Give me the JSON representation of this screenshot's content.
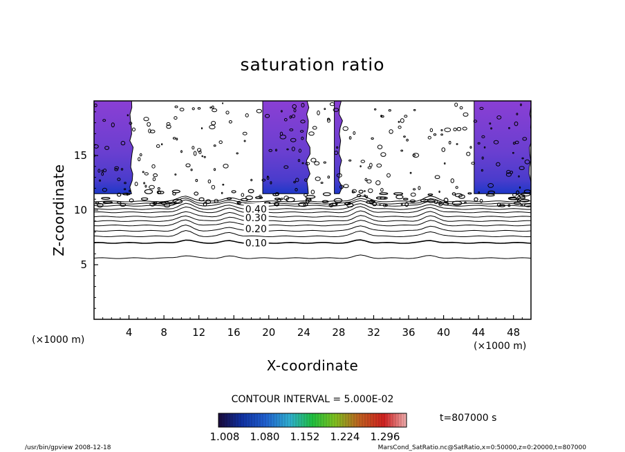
{
  "chart_data": {
    "type": "contour",
    "title": "saturation ratio",
    "xlabel": "X-coordinate",
    "ylabel": "Z-coordinate",
    "x_unit": "(×1000 m)",
    "xlim": [
      0,
      50
    ],
    "ylim": [
      0,
      20
    ],
    "x_ticks": [
      4,
      8,
      12,
      16,
      20,
      24,
      28,
      32,
      36,
      40,
      44,
      48
    ],
    "y_ticks": [
      5,
      10,
      15
    ],
    "contour_interval_text": "CONTOUR INTERVAL = 5.000E-02",
    "contour_labels": [
      {
        "text": "0.10",
        "x": 17.3,
        "z": 7.0
      },
      {
        "text": "0.20",
        "x": 17.3,
        "z": 8.3
      },
      {
        "text": "0.30",
        "x": 17.3,
        "z": 9.3
      },
      {
        "text": "0.40",
        "x": 17.3,
        "z": 10.1
      }
    ],
    "contours": [
      {
        "value": 0.05,
        "z": 5.6
      },
      {
        "value": 0.1,
        "z": 7.0
      },
      {
        "value": 0.15,
        "z": 7.6
      },
      {
        "value": 0.2,
        "z": 8.1
      },
      {
        "value": 0.25,
        "z": 8.6
      },
      {
        "value": 0.3,
        "z": 9.0
      },
      {
        "value": 0.35,
        "z": 9.4
      },
      {
        "value": 0.4,
        "z": 9.8
      },
      {
        "value": 0.45,
        "z": 10.1
      },
      {
        "value": 0.5,
        "z": 10.4
      },
      {
        "value": 0.55,
        "z": 10.6
      },
      {
        "value": 0.6,
        "z": 10.8
      }
    ],
    "supersaturated_regions": [
      {
        "x0": 0,
        "x1": 4.3
      },
      {
        "x0": 19.3,
        "x1": 24.5
      },
      {
        "x0": 27.5,
        "x1": 28.2
      },
      {
        "x0": 43.5,
        "x1": 50
      }
    ],
    "colorbar": {
      "tick_labels": [
        "1.008",
        "1.080",
        "1.152",
        "1.224",
        "1.296"
      ],
      "range": [
        1.0,
        1.33
      ]
    },
    "time_label": "t=807000 s"
  },
  "footer": {
    "left": "/usr/bin/gpview   2008-12-18",
    "right": "MarsCond_SatRatio.nc@SatRatio,x=0:50000,z=0:20000,t=807000"
  },
  "colors": {
    "fill_top": "#8a3fd4",
    "fill_mid": "#6a3fd0",
    "fill_bottom": "#1e38c8",
    "line": "#000000"
  }
}
